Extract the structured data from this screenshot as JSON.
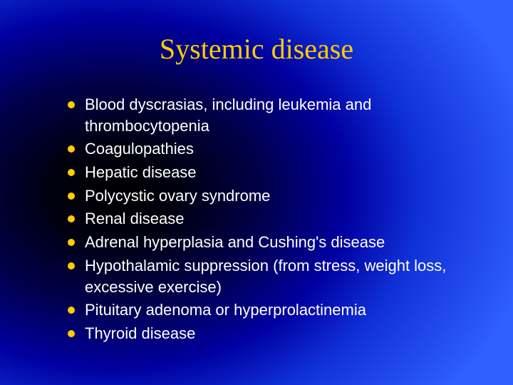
{
  "slide": {
    "title": "Systemic disease",
    "title_color": "#ffcc00",
    "title_fontsize": 40,
    "bullet_color": "#ffcc00",
    "text_color": "#ffffff",
    "text_fontsize": 22,
    "background_gradient": {
      "type": "radial",
      "center": "22% 50%",
      "stops": [
        "#000000",
        "#000010",
        "#00004a",
        "#0000a0",
        "#1030d8",
        "#3060ff"
      ]
    },
    "bullets": [
      "Blood dyscrasias, including leukemia and thrombocytopenia",
      "Coagulopathies",
      "Hepatic disease",
      "Polycystic ovary syndrome",
      "Renal disease",
      "Adrenal hyperplasia and Cushing's disease",
      "Hypothalamic suppression (from stress, weight loss, excessive exercise)",
      "Pituitary adenoma or hyperprolactinemia",
      "Thyroid disease"
    ]
  }
}
